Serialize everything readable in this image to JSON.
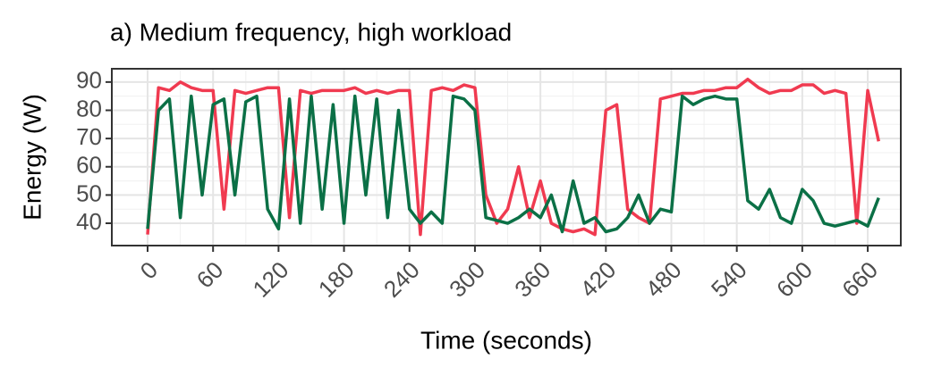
{
  "chart_data": {
    "type": "line",
    "title": "a) Medium frequency, high workload",
    "x_label": "Time (seconds)",
    "y_label": "Energy (W)",
    "x": [
      0,
      10,
      20,
      30,
      40,
      50,
      60,
      70,
      80,
      90,
      100,
      110,
      120,
      130,
      140,
      150,
      160,
      170,
      180,
      190,
      200,
      210,
      220,
      230,
      240,
      250,
      260,
      270,
      280,
      290,
      300,
      310,
      320,
      330,
      340,
      350,
      360,
      370,
      380,
      390,
      400,
      410,
      420,
      430,
      440,
      450,
      460,
      470,
      480,
      490,
      500,
      510,
      520,
      530,
      540,
      550,
      560,
      570,
      580,
      590,
      600,
      610,
      620,
      630,
      640,
      650,
      660,
      670
    ],
    "series": [
      {
        "color": "#f03a50",
        "values": [
          36,
          88,
          87,
          90,
          88,
          87,
          87,
          45,
          87,
          86,
          87,
          88,
          88,
          42,
          87,
          86,
          87,
          87,
          87,
          88,
          86,
          87,
          86,
          87,
          87,
          36,
          87,
          88,
          87,
          89,
          88,
          50,
          40,
          45,
          60,
          42,
          55,
          40,
          38,
          37,
          38,
          36,
          80,
          82,
          45,
          42,
          40,
          84,
          85,
          86,
          86,
          87,
          87,
          88,
          88,
          91,
          88,
          86,
          87,
          87,
          89,
          89,
          86,
          87,
          86,
          40,
          87,
          69
        ]
      },
      {
        "color": "#0b7046",
        "values": [
          38,
          80,
          84,
          42,
          85,
          50,
          82,
          84,
          50,
          83,
          85,
          45,
          38,
          84,
          40,
          85,
          45,
          82,
          40,
          85,
          50,
          84,
          42,
          80,
          45,
          40,
          44,
          40,
          85,
          84,
          80,
          42,
          41,
          40,
          42,
          45,
          42,
          50,
          37,
          55,
          40,
          42,
          37,
          38,
          42,
          50,
          40,
          45,
          44,
          85,
          82,
          84,
          85,
          84,
          84,
          48,
          45,
          52,
          42,
          40,
          52,
          48,
          40,
          39,
          40,
          41,
          39,
          49
        ]
      }
    ],
    "xlim": [
      -32.8,
      690.3
    ],
    "ylim": [
      32.1,
      94.7
    ],
    "xticks": [
      0,
      60,
      120,
      180,
      240,
      300,
      360,
      420,
      480,
      540,
      600,
      660
    ],
    "yticks": [
      40,
      50,
      60,
      70,
      80,
      90
    ],
    "grid": true
  }
}
